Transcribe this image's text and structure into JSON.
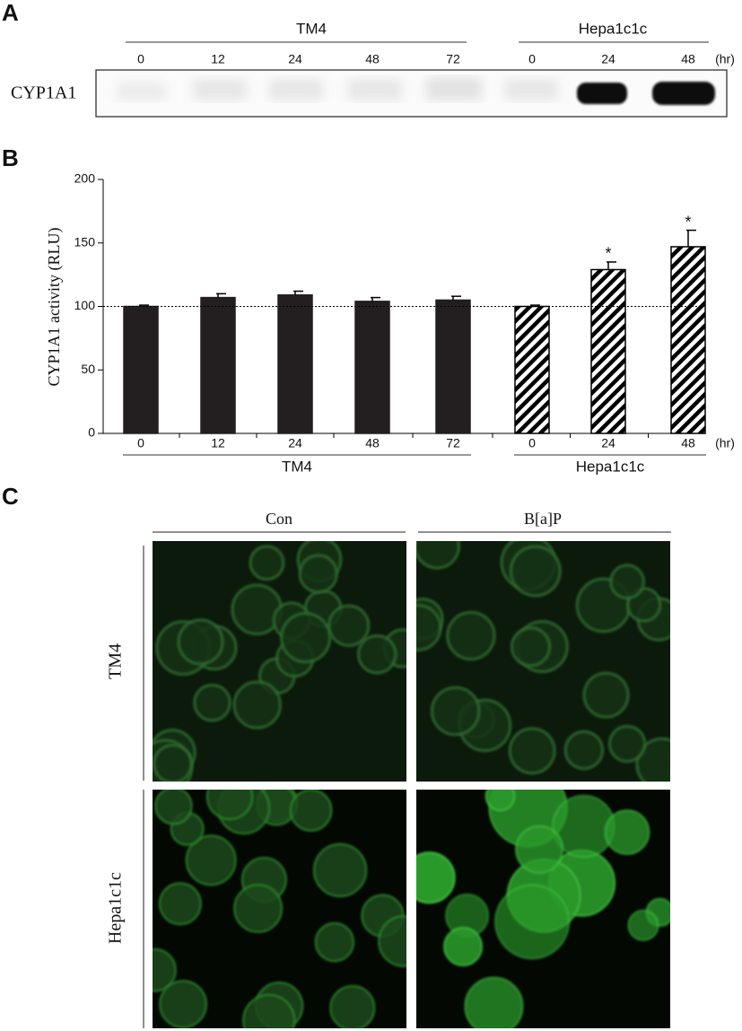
{
  "panel_a": {
    "label": "A",
    "row_label": "CYP1A1",
    "groups": [
      "TM4",
      "Hepa1c1c"
    ],
    "times": [
      "0",
      "12",
      "24",
      "48",
      "72",
      "0",
      "24",
      "48"
    ],
    "unit": "(hr)"
  },
  "chart_data": {
    "type": "bar",
    "panel_label": "B",
    "y_label": "CYP1A1 activity (RLU)",
    "x_unit": "(hr)",
    "categories": [
      "0",
      "12",
      "24",
      "48",
      "72",
      "0",
      "24",
      "48"
    ],
    "series": [
      {
        "name": "TM4",
        "color": "#231f20",
        "fill": "solid",
        "values": [
          100,
          107,
          109,
          104,
          105,
          null,
          null,
          null
        ],
        "errors": [
          1,
          3,
          3,
          3,
          3,
          null,
          null,
          null
        ]
      },
      {
        "name": "Hepa1c1c",
        "color": "#000000",
        "fill": "hatch",
        "values": [
          null,
          null,
          null,
          null,
          null,
          100,
          129,
          147
        ],
        "errors": [
          null,
          null,
          null,
          null,
          null,
          1,
          6,
          13
        ],
        "significance": [
          null,
          null,
          null,
          null,
          null,
          null,
          "*",
          "*"
        ]
      }
    ],
    "ylim": [
      0,
      200
    ],
    "yticks": [
      0,
      50,
      100,
      150,
      200
    ],
    "reference_line": 100
  },
  "panel_c": {
    "label": "C",
    "columns": [
      "Con",
      "B[a]P"
    ],
    "rows": [
      "TM4",
      "Hepa1c1c"
    ]
  }
}
